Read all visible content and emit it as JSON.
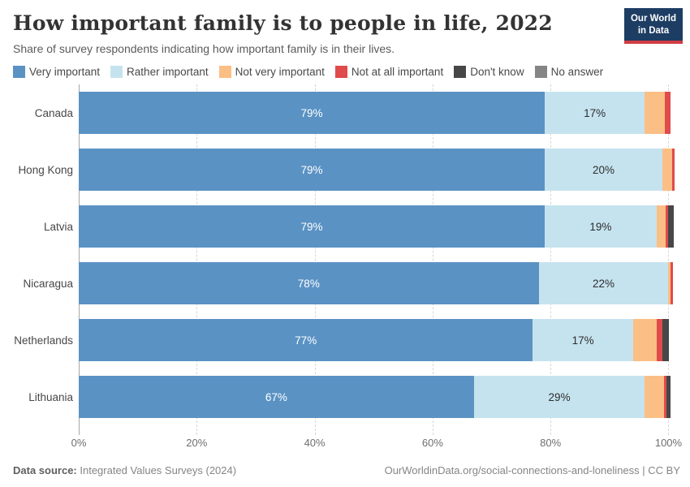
{
  "header": {
    "title": "How important family is to people in life, 2022",
    "subtitle": "Share of survey respondents indicating how important family is in their lives.",
    "logo_line1": "Our World",
    "logo_line2": "in Data"
  },
  "colors": {
    "very_important": "#5a92c4",
    "rather_important": "#c5e3ef",
    "not_very_important": "#fbbe85",
    "not_at_all_important": "#e04b4b",
    "dont_know": "#474747",
    "no_answer": "#858585",
    "logo_bg": "#1d3d63",
    "logo_stripe": "#d13d43"
  },
  "chart_data": {
    "type": "bar",
    "orientation": "horizontal",
    "stacked": true,
    "title": "How important family is to people in life, 2022",
    "xlabel": "",
    "ylabel": "",
    "grid": "dashed-vertical",
    "legend_position": "top",
    "axis_max_units": 102,
    "categories": [
      "Canada",
      "Hong Kong",
      "Latvia",
      "Nicaragua",
      "Netherlands",
      "Lithuania"
    ],
    "series": [
      {
        "name": "Very important",
        "color": "#5a92c4",
        "label_color": "#ffffff",
        "values": [
          79,
          79,
          79,
          78,
          77,
          67
        ],
        "labels": [
          "79%",
          "79%",
          "79%",
          "78%",
          "77%",
          "67%"
        ]
      },
      {
        "name": "Rather important",
        "color": "#c5e3ef",
        "label_color": "#2d2d2d",
        "values": [
          17,
          20,
          19,
          22,
          17,
          29
        ],
        "labels": [
          "17%",
          "20%",
          "19%",
          "22%",
          "17%",
          "29%"
        ]
      },
      {
        "name": "Not very important",
        "color": "#fbbe85",
        "label_color": "#2d2d2d",
        "values": [
          3.4,
          1.6,
          1.5,
          0.3,
          4,
          3.2
        ],
        "labels": [
          "",
          "",
          "",
          "",
          "",
          ""
        ]
      },
      {
        "name": "Not at all important",
        "color": "#e04b4b",
        "label_color": "#ffffff",
        "values": [
          0.9,
          0.4,
          0.4,
          0.4,
          1,
          0.5
        ],
        "labels": [
          "",
          "",
          "",
          "",
          "",
          ""
        ]
      },
      {
        "name": "Don't know",
        "color": "#474747",
        "label_color": "#ffffff",
        "values": [
          0,
          0,
          1,
          0,
          1.1,
          0.6
        ],
        "labels": [
          "",
          "",
          "",
          "",
          "",
          ""
        ]
      },
      {
        "name": "No answer",
        "color": "#858585",
        "label_color": "#ffffff",
        "values": [
          0,
          0,
          0,
          0,
          0,
          0
        ],
        "labels": [
          "",
          "",
          "",
          "",
          "",
          ""
        ]
      }
    ],
    "x_axis": {
      "tick_values": [
        0,
        20,
        40,
        60,
        80,
        100
      ],
      "tick_labels": [
        "0%",
        "20%",
        "40%",
        "60%",
        "80%",
        "100%"
      ]
    }
  },
  "footer": {
    "source_label": "Data source:",
    "source_value": " Integrated Values Surveys (2024)",
    "link": "OurWorldinData.org/social-connections-and-loneliness | CC BY"
  }
}
